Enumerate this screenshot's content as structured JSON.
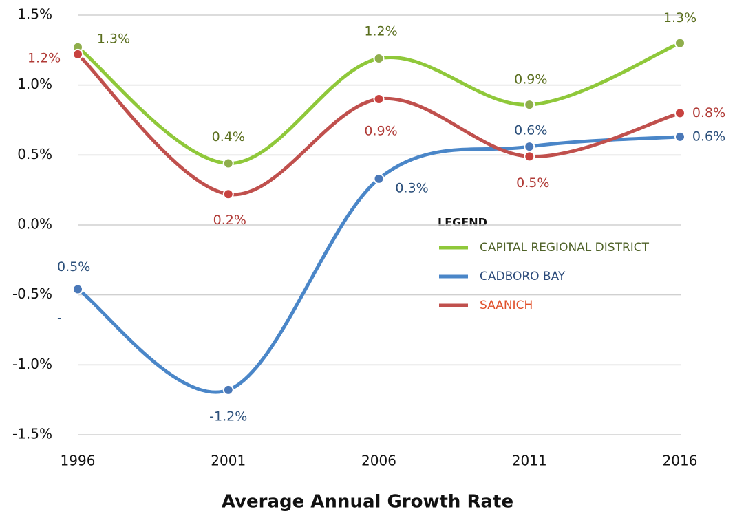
{
  "chart_data": {
    "type": "line",
    "title": "Average Annual Growth Rate",
    "categories": [
      "1996",
      "2001",
      "2006",
      "2011",
      "2016"
    ],
    "series": [
      {
        "name": "CAPITAL REGIONAL DISTRICT",
        "color": "#8fc83a",
        "marker_color": "#8fae4c",
        "label_color": "#5a6e1e",
        "legend_color": "#4f6228",
        "values": [
          1.27,
          0.44,
          1.19,
          0.86,
          1.3
        ],
        "value_labels": [
          "1.3%",
          "0.4%",
          "1.2%",
          "0.9%",
          "1.3%"
        ]
      },
      {
        "name": "CADBORO BAY",
        "color": "#4a86c8",
        "marker_color": "#4a78b8",
        "label_color": "#2b4f7a",
        "legend_color": "#2b4a7a",
        "values": [
          -0.46,
          -1.18,
          0.33,
          0.56,
          0.63
        ],
        "value_labels": [
          "0.5%\n-",
          "-1.2%",
          "0.3%",
          "0.6%",
          "0.6%"
        ]
      },
      {
        "name": "SAANICH",
        "color": "#c0504d",
        "marker_color": "#c8423f",
        "label_color": "#b03a36",
        "legend_color": "#e0502a",
        "values": [
          1.22,
          0.22,
          0.9,
          0.49,
          0.8
        ],
        "value_labels": [
          "1.2%",
          "0.2%",
          "0.9%",
          "0.5%",
          "0.8%"
        ]
      }
    ],
    "ylim": [
      -1.5,
      1.5
    ],
    "yticks": [
      {
        "value": 1.5,
        "label": "1.5%"
      },
      {
        "value": 1.0,
        "label": "1.0%"
      },
      {
        "value": 0.5,
        "label": "0.5%"
      },
      {
        "value": 0.0,
        "label": "0.0%"
      },
      {
        "value": -0.5,
        "label": "-0.5%"
      },
      {
        "value": -1.0,
        "label": "-1.0%"
      },
      {
        "value": -1.5,
        "label": "-1.5%"
      }
    ],
    "grid": true,
    "legend_title": "LEGEND"
  }
}
